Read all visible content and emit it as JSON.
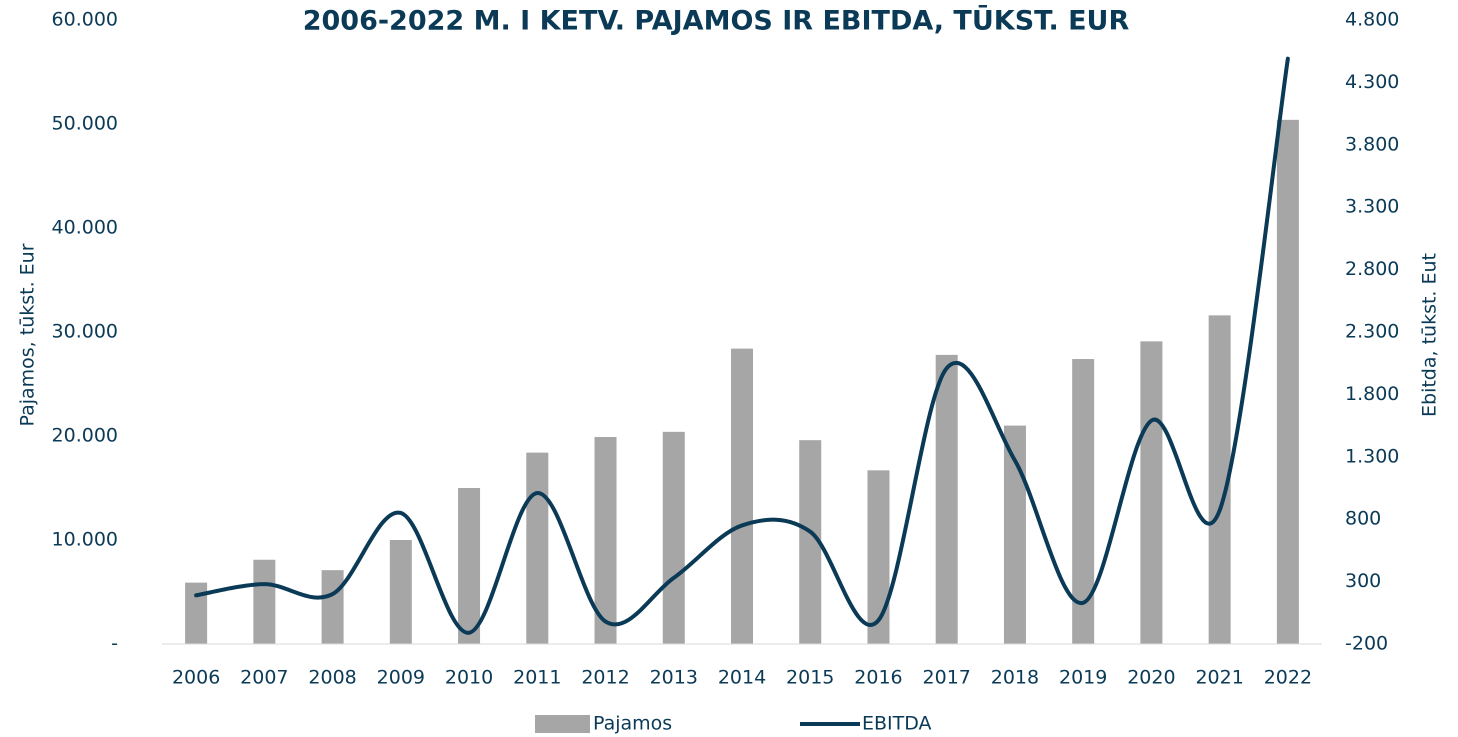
{
  "chart_data": {
    "type": "bar-line",
    "title": "2006-2022 M. I KETV. PAJAMOS IR EBITDA, TŪKST. EUR",
    "ylabel": "Pajamos, tūkst. Eur",
    "y2label": "Ebitda, tūkst. Eut",
    "categories": [
      "2006",
      "2007",
      "2008",
      "2009",
      "2010",
      "2011",
      "2012",
      "2013",
      "2014",
      "2015",
      "2016",
      "2017",
      "2018",
      "2019",
      "2020",
      "2021",
      "2022"
    ],
    "series": [
      {
        "name": "Pajamos",
        "type": "bar",
        "color": "#a6a6a6",
        "axis": "y",
        "values": [
          5900,
          8100,
          7100,
          10000,
          15000,
          18400,
          19900,
          20400,
          28400,
          19600,
          16700,
          27800,
          21000,
          27400,
          29100,
          31600,
          50400
        ]
      },
      {
        "name": "EBITDA",
        "type": "line",
        "color": "#0b3a57",
        "axis": "y2",
        "smooth": true,
        "values": [
          190,
          280,
          200,
          850,
          -110,
          1010,
          -20,
          330,
          750,
          700,
          -10,
          2010,
          1270,
          130,
          1590,
          870,
          4490
        ]
      }
    ],
    "ylim": [
      0,
      60000
    ],
    "yticks": [
      {
        "value": 0,
        "label": "-"
      },
      {
        "value": 10000,
        "label": "10.000"
      },
      {
        "value": 20000,
        "label": "20.000"
      },
      {
        "value": 30000,
        "label": "30.000"
      },
      {
        "value": 40000,
        "label": "40.000"
      },
      {
        "value": 50000,
        "label": "50.000"
      },
      {
        "value": 60000,
        "label": "60.000"
      }
    ],
    "y2lim": [
      -200,
      4800
    ],
    "y2ticks": [
      -200,
      300,
      800,
      {
        "value": 1300,
        "label": "1.300"
      },
      {
        "value": 1800,
        "label": "1.800"
      },
      {
        "value": 2300,
        "label": "2.300"
      },
      {
        "value": 2800,
        "label": "2.800"
      },
      {
        "value": 3300,
        "label": "3.300"
      },
      {
        "value": 3800,
        "label": "3.800"
      },
      {
        "value": 4300,
        "label": "4.300"
      },
      {
        "value": 4800,
        "label": "4.800"
      }
    ],
    "legend": "bottom"
  }
}
